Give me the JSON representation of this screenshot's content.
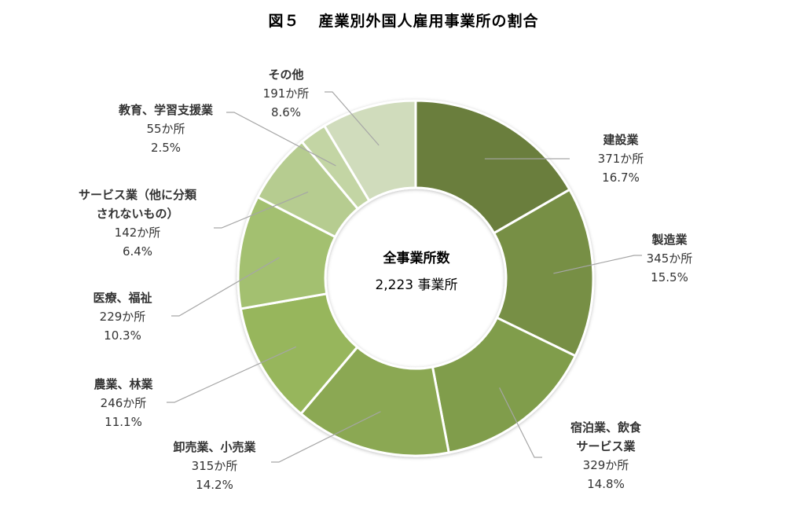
{
  "title": {
    "figure_number": "図５",
    "text": "産業別外国人雇用事業所の割合"
  },
  "center": {
    "label": "全事業所数",
    "value": "2,223 事業所"
  },
  "chart_data": {
    "type": "pie",
    "variant": "donut",
    "title": "図５ 産業別外国人雇用事業所の割合",
    "total": 2223,
    "total_label": "全事業所数 2,223 事業所",
    "unit": "か所",
    "start_angle": "12 o'clock, clockwise",
    "legend": "none (data labels with leader lines)",
    "slices": [
      {
        "name": "建設業",
        "count": 371,
        "count_label": "371か所",
        "percent": 16.7,
        "percent_label": "16.7%",
        "color": "#6a7e3d"
      },
      {
        "name": "製造業",
        "count": 345,
        "count_label": "345か所",
        "percent": 15.5,
        "percent_label": "15.5%",
        "color": "#778f45"
      },
      {
        "name": "宿泊業、飲食サービス業",
        "count": 329,
        "count_label": "329か所",
        "percent": 14.8,
        "percent_label": "14.8%",
        "color": "#809d4b"
      },
      {
        "name": "卸売業、小売業",
        "count": 315,
        "count_label": "315か所",
        "percent": 14.2,
        "percent_label": "14.2%",
        "color": "#8ba852"
      },
      {
        "name": "農業、林業",
        "count": 246,
        "count_label": "246か所",
        "percent": 11.1,
        "percent_label": "11.1%",
        "color": "#97b65b"
      },
      {
        "name": "医療、福祉",
        "count": 229,
        "count_label": "229か所",
        "percent": 10.3,
        "percent_label": "10.3%",
        "color": "#a3c06f"
      },
      {
        "name": "サービス業（他に分類されないもの）",
        "count": 142,
        "count_label": "142か所",
        "percent": 6.4,
        "percent_label": "6.4%",
        "color": "#b6cc90"
      },
      {
        "name": "教育、学習支援業",
        "count": 55,
        "count_label": "55か所",
        "percent": 2.5,
        "percent_label": "2.5%",
        "color": "#c3d5a4"
      },
      {
        "name": "その他",
        "count": 191,
        "count_label": "191か所",
        "percent": 8.6,
        "percent_label": "8.6%",
        "color": "#d0dcbc"
      }
    ]
  },
  "labels": [
    {
      "lines": [
        "建設業",
        "371か所",
        "16.7%"
      ]
    },
    {
      "lines": [
        "製造業",
        "345か所",
        "15.5%"
      ]
    },
    {
      "lines": [
        "宿泊業、飲食",
        "サービス業",
        "329か所",
        "14.8%"
      ]
    },
    {
      "lines": [
        "卸売業、小売業",
        "315か所",
        "14.2%"
      ]
    },
    {
      "lines": [
        "農業、林業",
        "246か所",
        "11.1%"
      ]
    },
    {
      "lines": [
        "医療、福祉",
        "229か所",
        "10.3%"
      ]
    },
    {
      "lines": [
        "サービス業（他に分類",
        "されないもの）",
        "142か所",
        "6.4%"
      ]
    },
    {
      "lines": [
        "教育、学習支援業",
        "55か所",
        "2.5%"
      ]
    },
    {
      "lines": [
        "その他",
        "191か所",
        "8.6%"
      ]
    }
  ]
}
